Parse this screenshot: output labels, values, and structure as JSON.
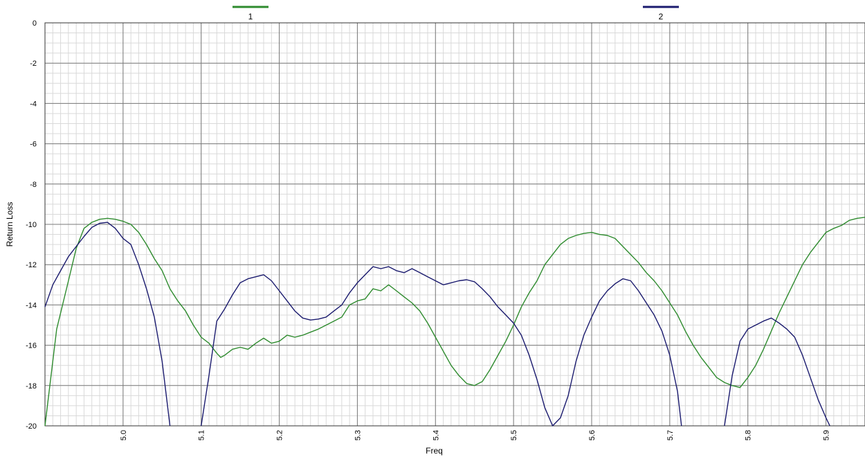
{
  "chart_data": {
    "type": "line",
    "xlabel": "Freq",
    "ylabel": "Return Loss",
    "xlim": [
      4.9,
      5.95
    ],
    "ylim": [
      -20,
      0
    ],
    "grid": true,
    "legend_position": "top",
    "x_ticks": [
      "5.0",
      "5.1",
      "5.2",
      "5.3",
      "5.4",
      "5.5",
      "5.6",
      "5.7",
      "5.8",
      "5.9"
    ],
    "y_ticks": [
      "0",
      "-2",
      "-4",
      "-6",
      "-8",
      "-10",
      "-12",
      "-14",
      "-16",
      "-18",
      "-20"
    ],
    "series": [
      {
        "name": "1",
        "color": "#2e8b2e",
        "points": [
          [
            4.9,
            -20
          ],
          [
            4.915,
            -15.2
          ],
          [
            4.93,
            -12.8
          ],
          [
            4.94,
            -11.2
          ],
          [
            4.95,
            -10.2
          ],
          [
            4.96,
            -9.9
          ],
          [
            4.97,
            -9.75
          ],
          [
            4.98,
            -9.7
          ],
          [
            4.99,
            -9.75
          ],
          [
            5.0,
            -9.85
          ],
          [
            5.01,
            -10.0
          ],
          [
            5.02,
            -10.4
          ],
          [
            5.03,
            -11.0
          ],
          [
            5.04,
            -11.7
          ],
          [
            5.05,
            -12.3
          ],
          [
            5.06,
            -13.2
          ],
          [
            5.07,
            -13.8
          ],
          [
            5.08,
            -14.3
          ],
          [
            5.09,
            -15.0
          ],
          [
            5.1,
            -15.6
          ],
          [
            5.11,
            -15.9
          ],
          [
            5.12,
            -16.4
          ],
          [
            5.125,
            -16.6
          ],
          [
            5.13,
            -16.5
          ],
          [
            5.14,
            -16.2
          ],
          [
            5.15,
            -16.1
          ],
          [
            5.16,
            -16.2
          ],
          [
            5.17,
            -15.9
          ],
          [
            5.18,
            -15.65
          ],
          [
            5.19,
            -15.9
          ],
          [
            5.2,
            -15.8
          ],
          [
            5.21,
            -15.5
          ],
          [
            5.22,
            -15.6
          ],
          [
            5.23,
            -15.5
          ],
          [
            5.24,
            -15.35
          ],
          [
            5.25,
            -15.2
          ],
          [
            5.26,
            -15.0
          ],
          [
            5.27,
            -14.8
          ],
          [
            5.28,
            -14.6
          ],
          [
            5.29,
            -14.0
          ],
          [
            5.3,
            -13.8
          ],
          [
            5.31,
            -13.7
          ],
          [
            5.32,
            -13.2
          ],
          [
            5.33,
            -13.3
          ],
          [
            5.34,
            -13.0
          ],
          [
            5.35,
            -13.3
          ],
          [
            5.36,
            -13.6
          ],
          [
            5.37,
            -13.9
          ],
          [
            5.38,
            -14.3
          ],
          [
            5.39,
            -14.9
          ],
          [
            5.4,
            -15.6
          ],
          [
            5.41,
            -16.3
          ],
          [
            5.42,
            -17.0
          ],
          [
            5.43,
            -17.5
          ],
          [
            5.44,
            -17.9
          ],
          [
            5.45,
            -18.0
          ],
          [
            5.46,
            -17.8
          ],
          [
            5.47,
            -17.2
          ],
          [
            5.48,
            -16.5
          ],
          [
            5.49,
            -15.8
          ],
          [
            5.5,
            -15.0
          ],
          [
            5.51,
            -14.1
          ],
          [
            5.52,
            -13.4
          ],
          [
            5.53,
            -12.8
          ],
          [
            5.54,
            -12.0
          ],
          [
            5.55,
            -11.5
          ],
          [
            5.56,
            -11.0
          ],
          [
            5.57,
            -10.7
          ],
          [
            5.58,
            -10.55
          ],
          [
            5.59,
            -10.45
          ],
          [
            5.6,
            -10.4
          ],
          [
            5.61,
            -10.5
          ],
          [
            5.62,
            -10.55
          ],
          [
            5.63,
            -10.7
          ],
          [
            5.64,
            -11.1
          ],
          [
            5.65,
            -11.5
          ],
          [
            5.66,
            -11.9
          ],
          [
            5.67,
            -12.4
          ],
          [
            5.68,
            -12.8
          ],
          [
            5.69,
            -13.3
          ],
          [
            5.7,
            -13.9
          ],
          [
            5.71,
            -14.5
          ],
          [
            5.72,
            -15.3
          ],
          [
            5.73,
            -16.0
          ],
          [
            5.74,
            -16.6
          ],
          [
            5.75,
            -17.1
          ],
          [
            5.76,
            -17.6
          ],
          [
            5.77,
            -17.85
          ],
          [
            5.78,
            -18.0
          ],
          [
            5.79,
            -18.1
          ],
          [
            5.8,
            -17.6
          ],
          [
            5.81,
            -17.0
          ],
          [
            5.82,
            -16.2
          ],
          [
            5.83,
            -15.3
          ],
          [
            5.84,
            -14.4
          ],
          [
            5.85,
            -13.6
          ],
          [
            5.86,
            -12.8
          ],
          [
            5.87,
            -12.0
          ],
          [
            5.88,
            -11.4
          ],
          [
            5.89,
            -10.9
          ],
          [
            5.9,
            -10.4
          ],
          [
            5.91,
            -10.2
          ],
          [
            5.92,
            -10.05
          ],
          [
            5.93,
            -9.8
          ],
          [
            5.94,
            -9.7
          ],
          [
            5.95,
            -9.65
          ]
        ]
      },
      {
        "name": "2",
        "color": "#1a1a6e",
        "points": [
          [
            4.9,
            -14.1
          ],
          [
            4.91,
            -13.0
          ],
          [
            4.92,
            -12.3
          ],
          [
            4.93,
            -11.6
          ],
          [
            4.94,
            -11.1
          ],
          [
            4.95,
            -10.6
          ],
          [
            4.96,
            -10.15
          ],
          [
            4.97,
            -9.95
          ],
          [
            4.98,
            -9.9
          ],
          [
            4.99,
            -10.2
          ],
          [
            5.0,
            -10.7
          ],
          [
            5.01,
            -11.0
          ],
          [
            5.02,
            -12.0
          ],
          [
            5.03,
            -13.2
          ],
          [
            5.04,
            -14.6
          ],
          [
            5.05,
            -16.8
          ],
          [
            5.06,
            -20.0
          ],
          [
            5.1,
            -20.0
          ],
          [
            5.11,
            -17.5
          ],
          [
            5.12,
            -14.8
          ],
          [
            5.13,
            -14.2
          ],
          [
            5.14,
            -13.5
          ],
          [
            5.15,
            -12.9
          ],
          [
            5.16,
            -12.7
          ],
          [
            5.17,
            -12.6
          ],
          [
            5.18,
            -12.5
          ],
          [
            5.19,
            -12.8
          ],
          [
            5.2,
            -13.3
          ],
          [
            5.21,
            -13.8
          ],
          [
            5.22,
            -14.3
          ],
          [
            5.23,
            -14.65
          ],
          [
            5.24,
            -14.75
          ],
          [
            5.25,
            -14.7
          ],
          [
            5.26,
            -14.6
          ],
          [
            5.27,
            -14.3
          ],
          [
            5.28,
            -14.0
          ],
          [
            5.29,
            -13.4
          ],
          [
            5.3,
            -12.9
          ],
          [
            5.31,
            -12.5
          ],
          [
            5.32,
            -12.1
          ],
          [
            5.33,
            -12.2
          ],
          [
            5.34,
            -12.1
          ],
          [
            5.35,
            -12.3
          ],
          [
            5.36,
            -12.4
          ],
          [
            5.37,
            -12.2
          ],
          [
            5.38,
            -12.4
          ],
          [
            5.39,
            -12.6
          ],
          [
            5.4,
            -12.8
          ],
          [
            5.41,
            -13.0
          ],
          [
            5.42,
            -12.9
          ],
          [
            5.43,
            -12.8
          ],
          [
            5.44,
            -12.75
          ],
          [
            5.45,
            -12.85
          ],
          [
            5.46,
            -13.2
          ],
          [
            5.47,
            -13.6
          ],
          [
            5.48,
            -14.1
          ],
          [
            5.49,
            -14.5
          ],
          [
            5.5,
            -14.9
          ],
          [
            5.51,
            -15.5
          ],
          [
            5.52,
            -16.5
          ],
          [
            5.53,
            -17.7
          ],
          [
            5.54,
            -19.1
          ],
          [
            5.55,
            -20.0
          ],
          [
            5.56,
            -19.6
          ],
          [
            5.57,
            -18.5
          ],
          [
            5.58,
            -16.8
          ],
          [
            5.59,
            -15.5
          ],
          [
            5.6,
            -14.6
          ],
          [
            5.61,
            -13.8
          ],
          [
            5.62,
            -13.3
          ],
          [
            5.63,
            -12.95
          ],
          [
            5.64,
            -12.7
          ],
          [
            5.65,
            -12.8
          ],
          [
            5.66,
            -13.3
          ],
          [
            5.67,
            -13.9
          ],
          [
            5.68,
            -14.5
          ],
          [
            5.69,
            -15.3
          ],
          [
            5.7,
            -16.5
          ],
          [
            5.71,
            -18.3
          ],
          [
            5.715,
            -20.0
          ],
          [
            5.77,
            -20.0
          ],
          [
            5.78,
            -17.5
          ],
          [
            5.79,
            -15.8
          ],
          [
            5.8,
            -15.2
          ],
          [
            5.81,
            -15.0
          ],
          [
            5.82,
            -14.8
          ],
          [
            5.83,
            -14.65
          ],
          [
            5.84,
            -14.9
          ],
          [
            5.85,
            -15.2
          ],
          [
            5.86,
            -15.6
          ],
          [
            5.87,
            -16.5
          ],
          [
            5.88,
            -17.6
          ],
          [
            5.89,
            -18.7
          ],
          [
            5.9,
            -19.6
          ],
          [
            5.905,
            -20.0
          ]
        ]
      }
    ]
  }
}
